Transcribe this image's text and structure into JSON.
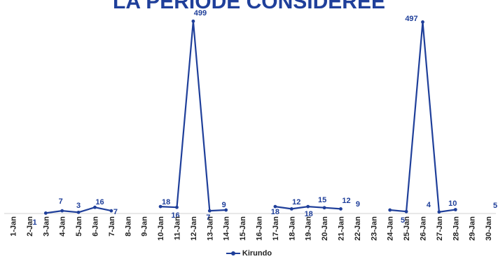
{
  "chart_data": {
    "type": "line",
    "title": "LA PERIODE CONSIDEREE",
    "xlabel": "",
    "ylabel": "",
    "categories": [
      "1-Jan",
      "2-Jan",
      "3-Jan",
      "4-Jan",
      "5-Jan",
      "6-Jan",
      "7-Jan",
      "8-Jan",
      "9-Jan",
      "10-Jan",
      "11-Jan",
      "12-Jan",
      "13-Jan",
      "14-Jan",
      "15-Jan",
      "16-Jan",
      "17-Jan",
      "18-Jan",
      "19-Jan",
      "20-Jan",
      "21-Jan",
      "22-Jan",
      "23-Jan",
      "24-Jan",
      "25-Jan",
      "26-Jan",
      "27-Jan",
      "28-Jan",
      "29-Jan",
      "30-Jan"
    ],
    "series": [
      {
        "name": "Kirundo",
        "values": [
          1,
          null,
          1,
          7,
          3,
          16,
          7,
          null,
          null,
          18,
          16,
          499,
          7,
          9,
          null,
          null,
          18,
          12,
          18,
          15,
          12,
          9,
          null,
          9,
          5,
          497,
          4,
          10,
          null,
          5
        ]
      }
    ],
    "ylim": [
      0,
      505
    ],
    "grid": false,
    "legend": "bottom",
    "colors": {
      "series": "#1f3f9a",
      "axis": "#d0d0d0",
      "text": "#222222"
    }
  }
}
